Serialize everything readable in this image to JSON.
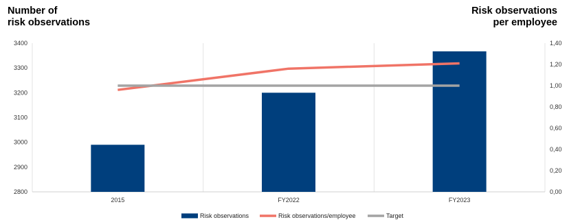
{
  "chart_data": {
    "type": "bar",
    "title": "",
    "ylabel_left": [
      "Number of",
      "risk observations"
    ],
    "ylabel_right": [
      "Risk observations",
      "per employee"
    ],
    "categories": [
      "2015",
      "FY2022",
      "FY2023"
    ],
    "ylim_left": [
      2800,
      3400
    ],
    "yticks_left": [
      "2800",
      "2900",
      "3000",
      "3100",
      "3200",
      "3300",
      "3400"
    ],
    "ylim_right": [
      0,
      1.4
    ],
    "yticks_right": [
      "0,00",
      "0,20",
      "0,40",
      "0,60",
      "0,80",
      "1,00",
      "1,20",
      "1,40"
    ],
    "grid": "vertical category lines",
    "legend_position": "bottom",
    "series": [
      {
        "name": "Risk observations",
        "type": "bar",
        "axis": "left",
        "color": "#003f7d",
        "values": [
          2990,
          3200,
          3367
        ]
      },
      {
        "name": "Risk observations/employee",
        "type": "line",
        "axis": "right",
        "color": "#f07467",
        "values": [
          0.96,
          1.16,
          1.21
        ]
      },
      {
        "name": "Target",
        "type": "line",
        "axis": "right",
        "color": "#a3a3a3",
        "values": [
          1.0,
          1.0,
          1.0
        ]
      }
    ]
  }
}
